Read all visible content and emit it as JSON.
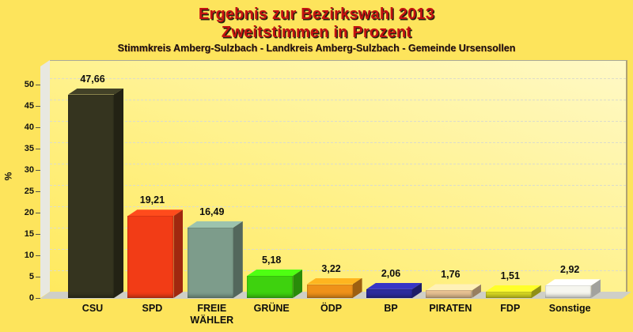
{
  "header": {
    "title_line1": "Ergebnis zur Bezirkswahl 2013",
    "title_line2": "Zweitstimmen in Prozent",
    "subtitle": "Stimmkreis Amberg-Sulzbach - Landkreis Amberg-Sulzbach - Gemeinde Ursensollen"
  },
  "chart_data": {
    "type": "bar",
    "style": "3d-column",
    "title": "Ergebnis zur Bezirkswahl 2013 — Zweitstimmen in Prozent",
    "subtitle": "Stimmkreis Amberg-Sulzbach - Landkreis Amberg-Sulzbach - Gemeinde Ursensollen",
    "categories": [
      "CSU",
      "SPD",
      "FREIE\nWÄHLER",
      "GRÜNE",
      "ÖDP",
      "BP",
      "PIRATEN",
      "FDP",
      "Sonstige"
    ],
    "values": [
      47.66,
      19.21,
      16.49,
      5.18,
      3.22,
      2.06,
      1.76,
      1.51,
      2.92
    ],
    "value_labels": [
      "47,66",
      "19,21",
      "16,49",
      "5,18",
      "3,22",
      "2,06",
      "1,76",
      "1,51",
      "2,92"
    ],
    "bar_colors": [
      "#35341f",
      "#f23c16",
      "#7d9c8b",
      "#3ed20e",
      "#ef9119",
      "#2b2b9e",
      "#e7c192",
      "#d9d922",
      "#f6f6ef"
    ],
    "xlabel": "",
    "ylabel": "%",
    "ylim": [
      0,
      50
    ],
    "ytick_step": 5,
    "ytick_labels": [
      "0",
      "5",
      "10",
      "15",
      "20",
      "25",
      "30",
      "35",
      "40",
      "45",
      "50"
    ],
    "grid": "dashed-horizontal",
    "legend": "none",
    "background_color": "#fde45c",
    "title_color": "#c41212",
    "value_decimal_separator": ","
  }
}
